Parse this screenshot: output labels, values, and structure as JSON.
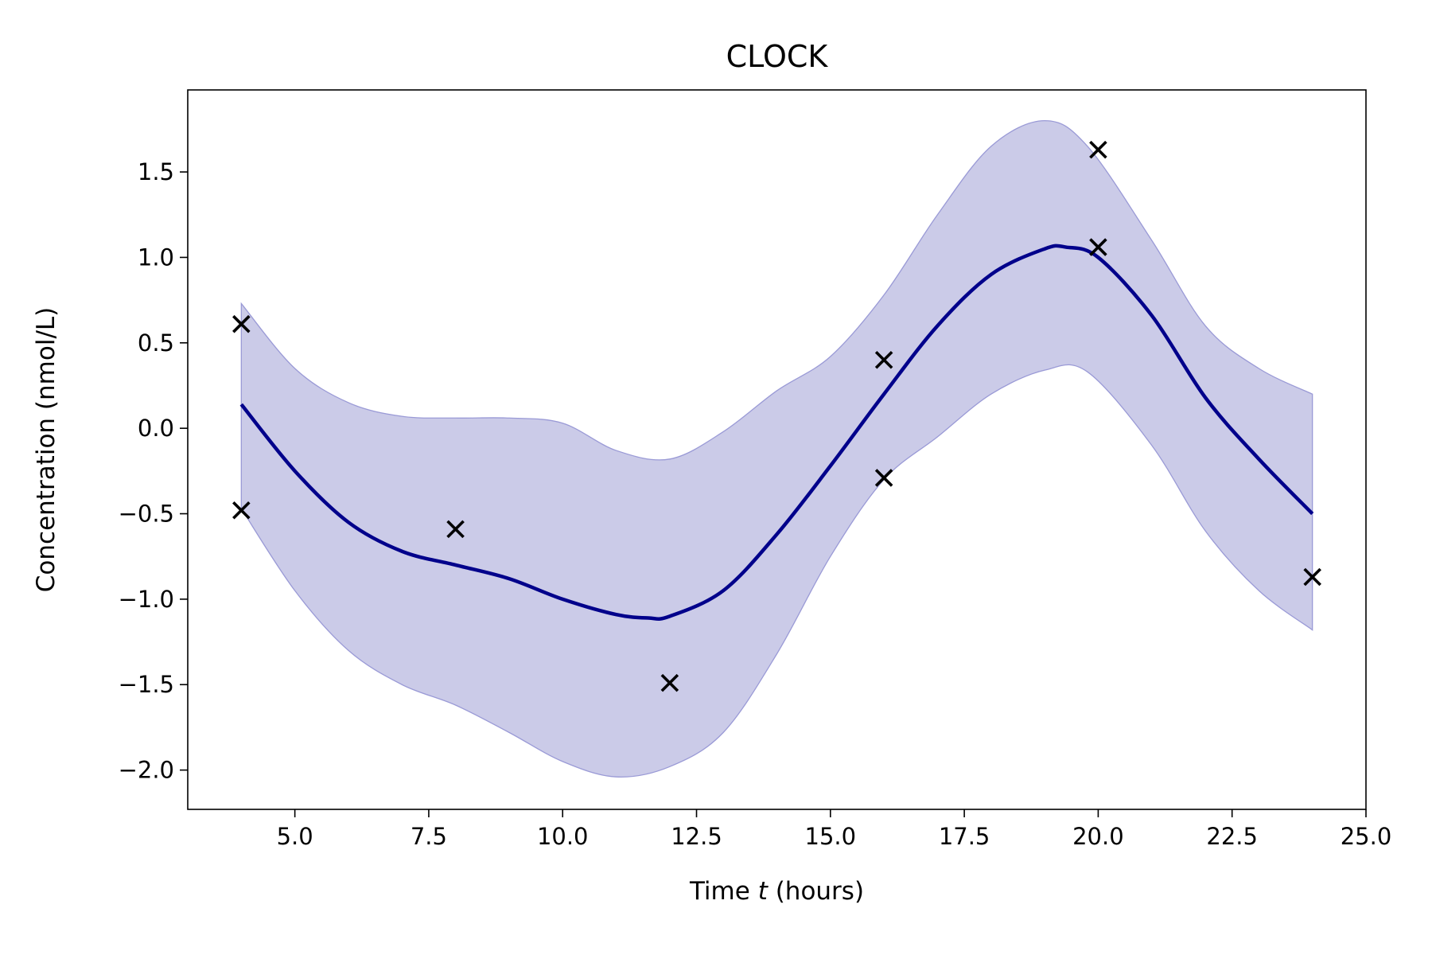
{
  "chart_data": {
    "type": "line",
    "title": "CLOCK",
    "xlabel_prefix": "Time ",
    "xlabel_var": "t",
    "xlabel_suffix": " (hours)",
    "ylabel": "Concentration (nmol/L)",
    "xlim": [
      3.0,
      25.0
    ],
    "ylim": [
      -2.23,
      1.98
    ],
    "xticks": [
      5.0,
      7.5,
      10.0,
      12.5,
      15.0,
      17.5,
      20.0,
      22.5,
      25.0
    ],
    "xtick_labels": [
      "5.0",
      "7.5",
      "10.0",
      "12.5",
      "15.0",
      "17.5",
      "20.0",
      "22.5",
      "25.0"
    ],
    "yticks": [
      -2.0,
      -1.5,
      -1.0,
      -0.5,
      0.0,
      0.5,
      1.0,
      1.5
    ],
    "ytick_labels": [
      "−2.0",
      "−1.5",
      "−1.0",
      "−0.5",
      "0.0",
      "0.5",
      "1.0",
      "1.5"
    ],
    "grid": false,
    "colors": {
      "mean_line": "#00008b",
      "band_fill": "#b3b3dd",
      "band_edge": "#9a9ad6",
      "points": "#000000"
    },
    "mean": {
      "x": [
        4,
        5,
        6,
        7,
        8,
        9,
        10,
        11,
        11.6,
        12,
        13,
        14,
        15,
        16,
        17,
        18,
        19,
        19.4,
        20,
        21,
        22,
        23,
        24
      ],
      "y": [
        0.14,
        -0.25,
        -0.55,
        -0.72,
        -0.8,
        -0.88,
        -1.0,
        -1.09,
        -1.11,
        -1.1,
        -0.95,
        -0.62,
        -0.22,
        0.2,
        0.6,
        0.9,
        1.05,
        1.06,
        1.0,
        0.66,
        0.18,
        -0.18,
        -0.5
      ]
    },
    "band": {
      "x": [
        4,
        5,
        6,
        7,
        8,
        9,
        10,
        11,
        12,
        13,
        14,
        15,
        16,
        17,
        18,
        19,
        19.8,
        21,
        22,
        23,
        24
      ],
      "upper": [
        0.73,
        0.35,
        0.15,
        0.07,
        0.06,
        0.06,
        0.03,
        -0.13,
        -0.18,
        -0.02,
        0.22,
        0.42,
        0.78,
        1.25,
        1.65,
        1.8,
        1.65,
        1.1,
        0.6,
        0.35,
        0.2
      ],
      "lower": [
        -0.47,
        -0.95,
        -1.3,
        -1.5,
        -1.62,
        -1.78,
        -1.95,
        -2.04,
        -1.98,
        -1.78,
        -1.32,
        -0.75,
        -0.3,
        -0.05,
        0.2,
        0.34,
        0.33,
        -0.1,
        -0.6,
        -0.95,
        -1.18
      ]
    },
    "points": {
      "x": [
        4,
        4,
        8,
        12,
        16,
        16,
        20,
        20,
        24
      ],
      "y": [
        0.61,
        -0.48,
        -0.59,
        -1.49,
        0.4,
        -0.29,
        1.63,
        1.06,
        -0.87
      ]
    }
  }
}
